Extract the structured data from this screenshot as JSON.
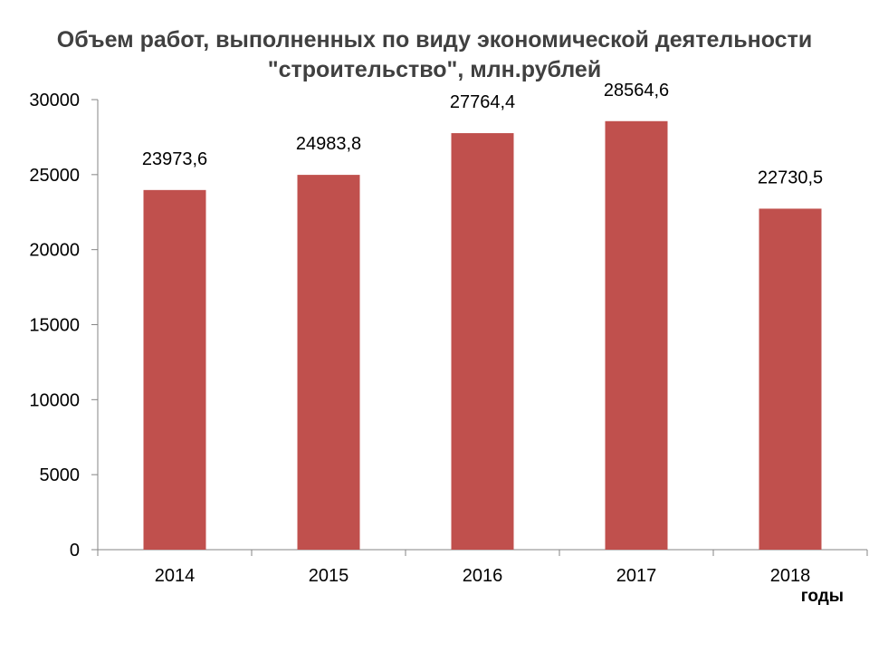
{
  "chart_data": {
    "type": "bar",
    "title_line1": "Объем работ, выполненных по виду экономической деятельности",
    "title_line2": "\"строительство\", млн.рублей",
    "xlabel": "годы",
    "ylabel": "",
    "categories": [
      "2014",
      "2015",
      "2016",
      "2017",
      "2018"
    ],
    "values": [
      23973.6,
      24983.8,
      27764.4,
      28564.6,
      22730.5
    ],
    "data_labels": [
      "23973,6",
      "24983,8",
      "27764,4",
      "28564,6",
      "22730,5"
    ],
    "ylim": [
      0,
      30000
    ],
    "yticks": [
      0,
      5000,
      10000,
      15000,
      20000,
      25000,
      30000
    ],
    "grid": false,
    "legend": "none",
    "bar_color": "#C0504D"
  }
}
